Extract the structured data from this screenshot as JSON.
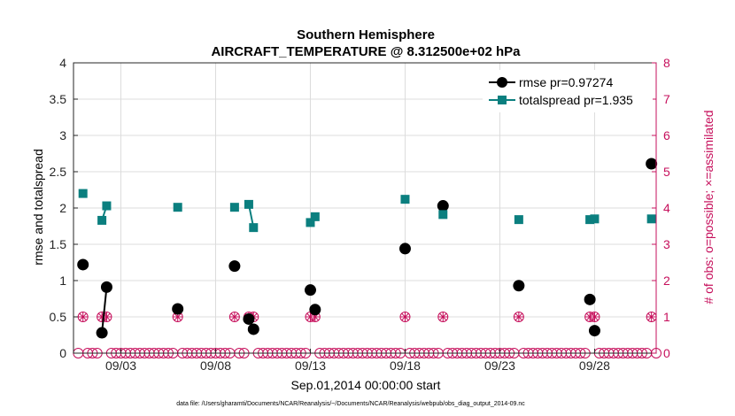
{
  "chart_data": {
    "type": "scatter",
    "title": "Southern Hemisphere",
    "subtitle": "AIRCRAFT_TEMPERATURE @ 8.312500e+02 hPa",
    "xlabel": "Sep.01,2014 00:00:00 start",
    "ylabel": "rmse and totalspread",
    "ylabel_right": "# of obs: o=possible; ×=assimilated",
    "footnote": "data file: /Users/gharamti/Documents/NCAR/Reanalysis/~/Documents/NCAR/Reanalysis/webpub/obs_diag_output_2014-09.nc",
    "xlim": [
      0,
      30
    ],
    "ylim": [
      0,
      4
    ],
    "ylim_right": [
      0,
      8
    ],
    "x_ticks": [
      {
        "x": 2.5,
        "label": "09/03"
      },
      {
        "x": 7.5,
        "label": "09/08"
      },
      {
        "x": 12.5,
        "label": "09/13"
      },
      {
        "x": 17.5,
        "label": "09/18"
      },
      {
        "x": 22.5,
        "label": "09/23"
      },
      {
        "x": 27.5,
        "label": "09/28"
      }
    ],
    "y_ticks": [
      "0",
      "0.5",
      "1",
      "1.5",
      "2",
      "2.5",
      "3",
      "3.5",
      "4"
    ],
    "y_ticks_right": [
      "0",
      "1",
      "2",
      "3",
      "4",
      "5",
      "6",
      "7",
      "8"
    ],
    "grid": true,
    "legend_position": "top-right",
    "colors": {
      "rmse": "#000000",
      "spread": "#0b7f7f",
      "obs": "#c6105c",
      "grid": "#dcdcdc"
    },
    "series": [
      {
        "name": "rmse pr=0.97274",
        "key": "rmse",
        "marker": "circle",
        "x": [
          0.5,
          1.5,
          1.75,
          5.5,
          8.5,
          9.25,
          9.5,
          12.5,
          12.75,
          17.5,
          19.5,
          23.5,
          27.25,
          27.5,
          30.5
        ],
        "values": [
          1.22,
          0.28,
          0.91,
          0.61,
          1.2,
          0.47,
          0.33,
          0.87,
          0.6,
          1.44,
          2.03,
          0.93,
          0.74,
          0.31,
          2.61
        ],
        "connected": [
          false,
          true,
          true,
          false,
          false,
          true,
          true,
          false,
          false,
          false,
          false,
          false,
          false,
          false,
          false
        ]
      },
      {
        "name": "totalspread pr=1.935",
        "key": "spread",
        "marker": "square",
        "x": [
          0.5,
          1.5,
          1.75,
          5.5,
          8.5,
          9.25,
          9.5,
          12.5,
          12.75,
          17.5,
          19.5,
          23.5,
          27.25,
          27.5,
          30.5
        ],
        "values": [
          2.2,
          1.83,
          2.03,
          2.01,
          2.01,
          2.05,
          1.73,
          1.8,
          1.88,
          2.12,
          1.91,
          1.84,
          1.84,
          1.85,
          1.85
        ],
        "connected": [
          false,
          true,
          true,
          false,
          false,
          true,
          true,
          false,
          false,
          false,
          false,
          false,
          false,
          false,
          false
        ]
      },
      {
        "name": "# of obs possible / assimilated",
        "key": "obs",
        "axis": "right",
        "x_step": 0.25,
        "x_start": 0.25,
        "x_end": 30.75,
        "ones_at": [
          0.5,
          1.5,
          1.75,
          5.5,
          8.5,
          9.25,
          9.5,
          12.5,
          12.75,
          17.5,
          19.5,
          23.5,
          27.25,
          27.5,
          30.5
        ],
        "default_value": 0,
        "marked_value": 1
      }
    ]
  }
}
